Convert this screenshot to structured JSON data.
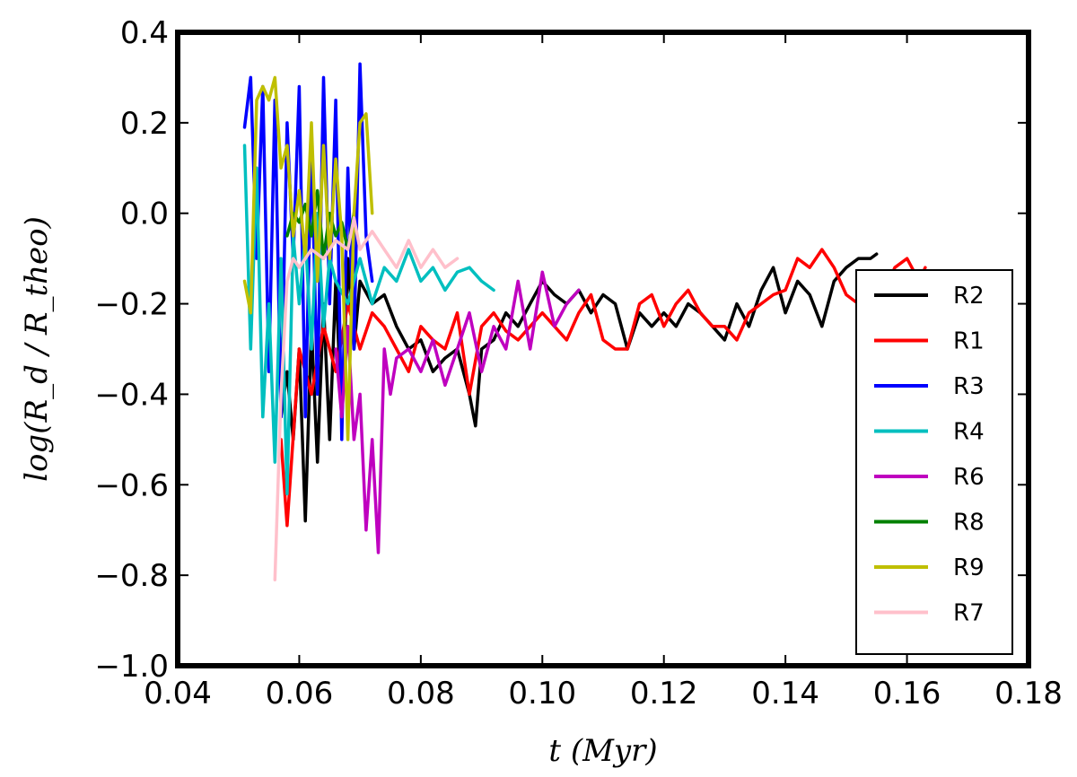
{
  "chart_data": {
    "type": "line",
    "xlabel": "t (Myr)",
    "ylabel": "log(R_d / R_theo)",
    "xlim": [
      0.04,
      0.18
    ],
    "ylim": [
      -1.0,
      0.4
    ],
    "x_ticks": [
      "0.04",
      "0.06",
      "0.08",
      "0.10",
      "0.12",
      "0.14",
      "0.16",
      "0.18"
    ],
    "y_ticks": [
      "0.4",
      "0.2",
      "0.0",
      "−0.2",
      "−0.4",
      "−0.6",
      "−0.8",
      "−1.0"
    ],
    "legend_position": "lower-right",
    "grid": false,
    "series": [
      {
        "name": "R2",
        "color": "#000000",
        "x": [
          0.057,
          0.058,
          0.059,
          0.06,
          0.061,
          0.062,
          0.063,
          0.064,
          0.065,
          0.066,
          0.067,
          0.068,
          0.069,
          0.07,
          0.072,
          0.074,
          0.076,
          0.078,
          0.08,
          0.082,
          0.084,
          0.086,
          0.088,
          0.089,
          0.09,
          0.092,
          0.094,
          0.096,
          0.098,
          0.1,
          0.102,
          0.104,
          0.106,
          0.108,
          0.11,
          0.112,
          0.114,
          0.116,
          0.118,
          0.12,
          0.122,
          0.124,
          0.126,
          0.128,
          0.13,
          0.132,
          0.134,
          0.136,
          0.138,
          0.14,
          0.142,
          0.144,
          0.146,
          0.148,
          0.15,
          0.152,
          0.154,
          0.155
        ],
        "y": [
          -0.45,
          -0.35,
          -0.5,
          -0.3,
          -0.68,
          -0.25,
          -0.55,
          -0.2,
          -0.5,
          -0.15,
          -0.45,
          -0.1,
          -0.3,
          -0.15,
          -0.2,
          -0.18,
          -0.25,
          -0.3,
          -0.28,
          -0.35,
          -0.32,
          -0.3,
          -0.4,
          -0.47,
          -0.3,
          -0.28,
          -0.22,
          -0.25,
          -0.2,
          -0.15,
          -0.18,
          -0.2,
          -0.17,
          -0.22,
          -0.18,
          -0.2,
          -0.3,
          -0.22,
          -0.25,
          -0.22,
          -0.25,
          -0.2,
          -0.22,
          -0.25,
          -0.28,
          -0.2,
          -0.25,
          -0.17,
          -0.12,
          -0.22,
          -0.15,
          -0.18,
          -0.25,
          -0.15,
          -0.12,
          -0.1,
          -0.1,
          -0.09
        ]
      },
      {
        "name": "R1",
        "color": "#ff0000",
        "x": [
          0.057,
          0.058,
          0.06,
          0.062,
          0.064,
          0.066,
          0.068,
          0.07,
          0.072,
          0.074,
          0.076,
          0.078,
          0.08,
          0.082,
          0.084,
          0.086,
          0.088,
          0.09,
          0.092,
          0.094,
          0.096,
          0.098,
          0.1,
          0.102,
          0.104,
          0.106,
          0.108,
          0.11,
          0.112,
          0.114,
          0.116,
          0.118,
          0.12,
          0.122,
          0.124,
          0.126,
          0.128,
          0.13,
          0.132,
          0.134,
          0.136,
          0.138,
          0.14,
          0.142,
          0.144,
          0.146,
          0.148,
          0.15,
          0.152,
          0.154,
          0.156,
          0.158,
          0.16,
          0.162,
          0.163
        ],
        "y": [
          -0.5,
          -0.69,
          -0.3,
          -0.4,
          -0.25,
          -0.35,
          -0.2,
          -0.3,
          -0.22,
          -0.25,
          -0.3,
          -0.35,
          -0.25,
          -0.28,
          -0.3,
          -0.22,
          -0.4,
          -0.25,
          -0.22,
          -0.26,
          -0.28,
          -0.25,
          -0.22,
          -0.25,
          -0.28,
          -0.22,
          -0.18,
          -0.28,
          -0.3,
          -0.3,
          -0.2,
          -0.18,
          -0.25,
          -0.2,
          -0.17,
          -0.22,
          -0.25,
          -0.25,
          -0.28,
          -0.22,
          -0.2,
          -0.18,
          -0.17,
          -0.1,
          -0.12,
          -0.08,
          -0.12,
          -0.18,
          -0.2,
          -0.15,
          -0.18,
          -0.12,
          -0.1,
          -0.15,
          -0.12
        ]
      },
      {
        "name": "R3",
        "color": "#0000ff",
        "x": [
          0.051,
          0.052,
          0.053,
          0.054,
          0.055,
          0.056,
          0.057,
          0.058,
          0.059,
          0.06,
          0.061,
          0.062,
          0.063,
          0.064,
          0.065,
          0.066,
          0.067,
          0.068,
          0.069,
          0.07,
          0.071,
          0.072
        ],
        "y": [
          0.19,
          0.3,
          -0.1,
          0.28,
          -0.35,
          0.25,
          -0.45,
          0.2,
          -0.1,
          0.28,
          -0.45,
          0.15,
          -0.4,
          0.3,
          -0.2,
          0.25,
          -0.5,
          0.1,
          -0.3,
          0.33,
          -0.05,
          -0.15
        ]
      },
      {
        "name": "R4",
        "color": "#00bfbf",
        "x": [
          0.051,
          0.052,
          0.053,
          0.054,
          0.055,
          0.056,
          0.057,
          0.058,
          0.059,
          0.06,
          0.061,
          0.062,
          0.063,
          0.064,
          0.065,
          0.066,
          0.068,
          0.07,
          0.072,
          0.074,
          0.076,
          0.078,
          0.08,
          0.082,
          0.084,
          0.086,
          0.088,
          0.09,
          0.092
        ],
        "y": [
          0.15,
          -0.3,
          0.1,
          -0.45,
          -0.2,
          -0.55,
          -0.1,
          -0.62,
          -0.05,
          -0.2,
          -0.05,
          -0.3,
          0.0,
          -0.25,
          -0.1,
          -0.15,
          -0.2,
          -0.1,
          -0.2,
          -0.12,
          -0.15,
          -0.08,
          -0.15,
          -0.12,
          -0.17,
          -0.13,
          -0.12,
          -0.15,
          -0.17
        ]
      },
      {
        "name": "R6",
        "color": "#bf00bf",
        "x": [
          0.066,
          0.067,
          0.068,
          0.069,
          0.07,
          0.071,
          0.072,
          0.073,
          0.074,
          0.075,
          0.076,
          0.078,
          0.08,
          0.082,
          0.084,
          0.086,
          0.088,
          0.09,
          0.092,
          0.094,
          0.096,
          0.098,
          0.1,
          0.102,
          0.104,
          0.106
        ],
        "y": [
          -0.3,
          -0.45,
          -0.25,
          -0.5,
          -0.4,
          -0.7,
          -0.5,
          -0.75,
          -0.3,
          -0.4,
          -0.32,
          -0.3,
          -0.35,
          -0.28,
          -0.38,
          -0.3,
          -0.22,
          -0.35,
          -0.25,
          -0.3,
          -0.15,
          -0.3,
          -0.13,
          -0.25,
          -0.2,
          -0.17
        ]
      },
      {
        "name": "R8",
        "color": "#008000",
        "x": [
          0.058,
          0.059,
          0.06,
          0.061,
          0.062,
          0.063,
          0.064,
          0.065,
          0.066,
          0.067,
          0.068,
          0.069
        ],
        "y": [
          -0.05,
          0.0,
          -0.02,
          0.02,
          -0.05,
          0.05,
          -0.1,
          0.0,
          -0.05,
          -0.02,
          -0.08,
          0.0
        ]
      },
      {
        "name": "R9",
        "color": "#bfbf00",
        "x": [
          0.051,
          0.052,
          0.053,
          0.054,
          0.055,
          0.056,
          0.057,
          0.058,
          0.059,
          0.06,
          0.061,
          0.062,
          0.063,
          0.064,
          0.065,
          0.066,
          0.067,
          0.068,
          0.069,
          0.07,
          0.071,
          0.072
        ],
        "y": [
          -0.15,
          -0.22,
          0.25,
          0.28,
          0.25,
          0.3,
          0.1,
          0.15,
          -0.05,
          0.05,
          -0.1,
          0.2,
          -0.15,
          0.15,
          -0.1,
          0.12,
          -0.05,
          -0.5,
          0.0,
          0.2,
          0.22,
          0.0
        ]
      },
      {
        "name": "R7",
        "color": "#ffc0cb",
        "x": [
          0.056,
          0.057,
          0.058,
          0.059,
          0.06,
          0.062,
          0.064,
          0.066,
          0.068,
          0.069,
          0.07,
          0.072,
          0.074,
          0.076,
          0.078,
          0.08,
          0.082,
          0.084,
          0.086
        ],
        "y": [
          -0.81,
          -0.4,
          -0.15,
          -0.1,
          -0.12,
          -0.08,
          -0.1,
          -0.06,
          -0.08,
          -0.01,
          -0.08,
          -0.04,
          -0.08,
          -0.12,
          -0.06,
          -0.12,
          -0.08,
          -0.12,
          -0.1
        ]
      }
    ]
  }
}
